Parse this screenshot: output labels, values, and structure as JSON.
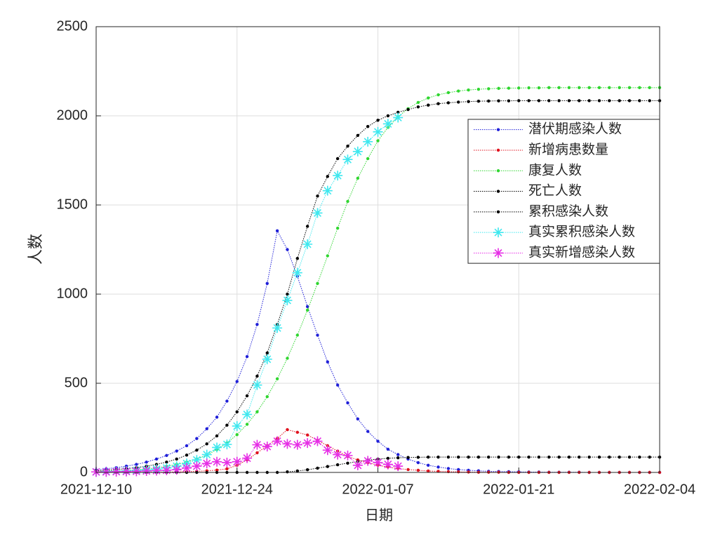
{
  "chart_data": {
    "type": "line",
    "xlabel": "日期",
    "ylabel": "人数",
    "x": [
      "2021-12-10",
      "2021-12-11",
      "2021-12-12",
      "2021-12-13",
      "2021-12-14",
      "2021-12-15",
      "2021-12-16",
      "2021-12-17",
      "2021-12-18",
      "2021-12-19",
      "2021-12-20",
      "2021-12-21",
      "2021-12-22",
      "2021-12-23",
      "2021-12-24",
      "2021-12-25",
      "2021-12-26",
      "2021-12-27",
      "2021-12-28",
      "2021-12-29",
      "2021-12-30",
      "2021-12-31",
      "2022-01-01",
      "2022-01-02",
      "2022-01-03",
      "2022-01-04",
      "2022-01-05",
      "2022-01-06",
      "2022-01-07",
      "2022-01-08",
      "2022-01-09",
      "2022-01-10",
      "2022-01-11",
      "2022-01-12",
      "2022-01-13",
      "2022-01-14",
      "2022-01-15",
      "2022-01-16",
      "2022-01-17",
      "2022-01-18",
      "2022-01-19",
      "2022-01-20",
      "2022-01-21",
      "2022-01-22",
      "2022-01-23",
      "2022-01-24",
      "2022-01-25",
      "2022-01-26",
      "2022-01-27",
      "2022-01-28",
      "2022-01-29",
      "2022-01-30",
      "2022-01-31",
      "2022-02-01",
      "2022-02-02",
      "2022-02-03",
      "2022-02-04"
    ],
    "xlim": [
      "2021-12-10",
      "2022-02-04"
    ],
    "xticks": [
      "2021-12-10",
      "2021-12-24",
      "2022-01-07",
      "2022-01-21",
      "2022-02-04"
    ],
    "ylim": [
      0,
      2500
    ],
    "yticks": [
      0,
      500,
      1000,
      1500,
      2000,
      2500
    ],
    "grid": true,
    "series": [
      {
        "name": "潜伏期感染人数",
        "color": "#1f1fd8",
        "marker": "dot",
        "values": [
          14,
          20,
          27,
          35,
          45,
          58,
          75,
          95,
          120,
          150,
          190,
          245,
          310,
          400,
          510,
          650,
          830,
          1060,
          1355,
          1250,
          1100,
          930,
          770,
          620,
          490,
          390,
          300,
          230,
          175,
          130,
          100,
          75,
          55,
          40,
          30,
          22,
          16,
          12,
          9,
          6,
          5,
          4,
          3,
          2,
          2,
          1,
          1,
          1,
          1,
          0,
          0,
          0,
          0,
          0,
          0,
          0,
          0
        ]
      },
      {
        "name": "新增病患数量",
        "color": "#e0121e",
        "marker": "dot",
        "values": [
          0,
          0,
          0,
          1,
          1,
          1,
          2,
          2,
          3,
          4,
          6,
          9,
          13,
          20,
          40,
          70,
          110,
          150,
          190,
          240,
          225,
          210,
          180,
          150,
          120,
          90,
          70,
          55,
          40,
          30,
          22,
          16,
          12,
          8,
          6,
          4,
          3,
          2,
          1,
          1,
          1,
          0,
          0,
          0,
          0,
          0,
          0,
          0,
          0,
          0,
          0,
          0,
          0,
          0,
          0,
          0,
          0
        ]
      },
      {
        "name": "康复人数",
        "color": "#2fd62f",
        "marker": "dot",
        "values": [
          5,
          7,
          9,
          12,
          15,
          20,
          26,
          34,
          45,
          58,
          75,
          98,
          128,
          165,
          212,
          270,
          340,
          425,
          525,
          640,
          770,
          910,
          1060,
          1215,
          1370,
          1520,
          1650,
          1760,
          1860,
          1935,
          1995,
          2040,
          2075,
          2100,
          2118,
          2130,
          2139,
          2145,
          2149,
          2152,
          2154,
          2155,
          2156,
          2157,
          2157,
          2158,
          2158,
          2158,
          2158,
          2158,
          2158,
          2158,
          2158,
          2158,
          2158,
          2158,
          2158
        ]
      },
      {
        "name": "死亡人数",
        "color": "#000000",
        "marker": "dot",
        "values": [
          0,
          0,
          0,
          0,
          0,
          0,
          0,
          0,
          0,
          0,
          0,
          0,
          0,
          0,
          0,
          0,
          0,
          0,
          0,
          3,
          8,
          15,
          24,
          33,
          43,
          52,
          61,
          69,
          75,
          79,
          82,
          84,
          85,
          86,
          86,
          86,
          86,
          86,
          86,
          86,
          86,
          86,
          86,
          86,
          86,
          86,
          86,
          86,
          86,
          86,
          86,
          86,
          86,
          86,
          86,
          86,
          86
        ]
      },
      {
        "name": "累积感染人数",
        "color": "#000000",
        "marker": "dot",
        "values": [
          9,
          12,
          16,
          21,
          27,
          35,
          45,
          58,
          75,
          97,
          125,
          160,
          205,
          265,
          340,
          430,
          540,
          670,
          830,
          1000,
          1200,
          1380,
          1550,
          1660,
          1760,
          1830,
          1890,
          1940,
          1975,
          2000,
          2020,
          2035,
          2050,
          2060,
          2068,
          2073,
          2077,
          2080,
          2082,
          2083,
          2084,
          2084,
          2085,
          2085,
          2085,
          2085,
          2085,
          2085,
          2085,
          2085,
          2085,
          2085,
          2085,
          2085,
          2085,
          2085,
          2085
        ]
      },
      {
        "name": "真实累积感染人数",
        "color": "#3fe8ef",
        "marker": "star",
        "values": [
          3,
          5,
          6,
          8,
          11,
          14,
          18,
          25,
          35,
          50,
          70,
          100,
          140,
          157,
          260,
          325,
          490,
          635,
          810,
          965,
          1120,
          1280,
          1455,
          1580,
          1665,
          1755,
          1800,
          1855,
          1910,
          1955,
          1990,
          null,
          null,
          null,
          null,
          null,
          null,
          null,
          null,
          null,
          null,
          null,
          null,
          null,
          null,
          null,
          null,
          null,
          null,
          null,
          null,
          null,
          null,
          null,
          null,
          null,
          null
        ]
      },
      {
        "name": "真实新增感染人数",
        "color": "#e62ee6",
        "marker": "star",
        "values": [
          3,
          3,
          4,
          5,
          6,
          8,
          10,
          12,
          15,
          25,
          35,
          50,
          60,
          55,
          60,
          80,
          155,
          145,
          175,
          160,
          155,
          165,
          175,
          125,
          100,
          95,
          40,
          65,
          55,
          45,
          35,
          null,
          null,
          null,
          null,
          null,
          null,
          null,
          null,
          null,
          null,
          null,
          null,
          null,
          null,
          null,
          null,
          null,
          null,
          null,
          null,
          null,
          null,
          null,
          null,
          null,
          null
        ]
      }
    ]
  }
}
